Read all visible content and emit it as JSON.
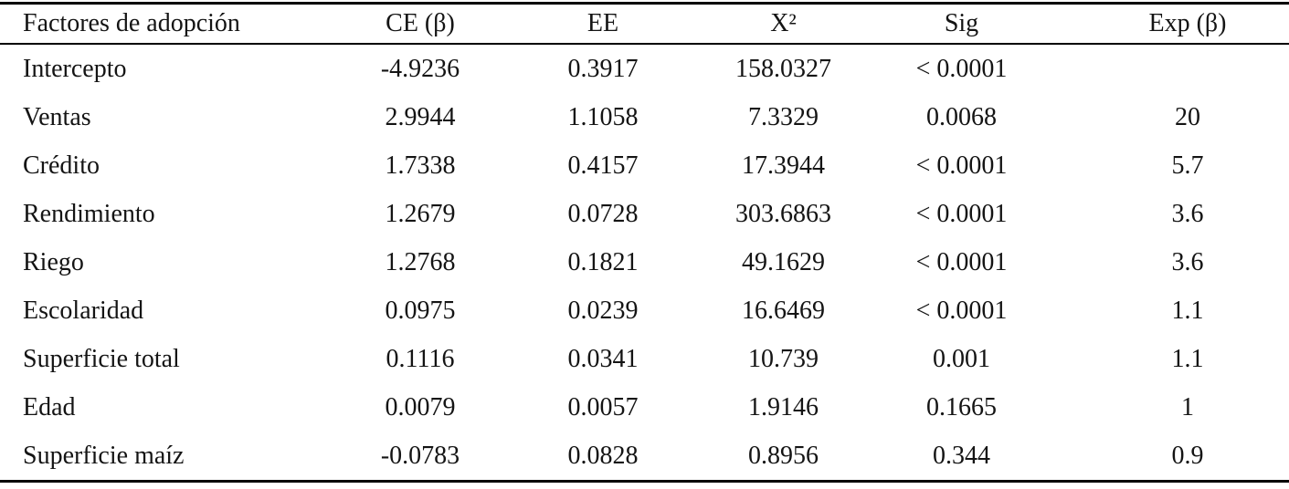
{
  "colors": {
    "background": "#ffffff",
    "text": "#141414",
    "rule": "#000000"
  },
  "chart_data": {
    "type": "table",
    "columns": [
      "Factores de adopción",
      "CE (β)",
      "EE",
      "X²",
      "Sig",
      "Exp (β)"
    ],
    "rows": [
      [
        "Intercepto",
        "-4.9236",
        "0.3917",
        "158.0327",
        "< 0.0001",
        ""
      ],
      [
        "Ventas",
        "2.9944",
        "1.1058",
        "7.3329",
        "0.0068",
        "20"
      ],
      [
        "Crédito",
        "1.7338",
        "0.4157",
        "17.3944",
        "< 0.0001",
        "5.7"
      ],
      [
        "Rendimiento",
        "1.2679",
        "0.0728",
        "303.6863",
        "< 0.0001",
        "3.6"
      ],
      [
        "Riego",
        "1.2768",
        "0.1821",
        "49.1629",
        "< 0.0001",
        "3.6"
      ],
      [
        "Escolaridad",
        "0.0975",
        "0.0239",
        "16.6469",
        "< 0.0001",
        "1.1"
      ],
      [
        "Superficie total",
        "0.1116",
        "0.0341",
        "10.739",
        "0.001",
        "1.1"
      ],
      [
        "Edad",
        "0.0079",
        "0.0057",
        "1.9146",
        "0.1665",
        "1"
      ],
      [
        "Superficie maíz",
        "-0.0783",
        "0.0828",
        "0.8956",
        "0.344",
        "0.9"
      ]
    ]
  }
}
